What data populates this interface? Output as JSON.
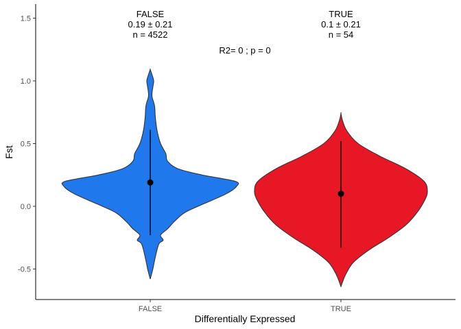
{
  "chart_data": {
    "type": "violin",
    "xlabel": "Differentially Expressed",
    "ylabel": "Fst",
    "categories": [
      "FALSE",
      "TRUE"
    ],
    "ylim": [
      -0.75,
      1.6
    ],
    "yticks": [
      -0.5,
      0.0,
      0.5,
      1.0,
      1.5
    ],
    "ytick_labels": [
      "-0.5",
      "0.0",
      "0.5",
      "1.0",
      "1.5"
    ],
    "grid": false,
    "legend": "none",
    "groups": [
      {
        "category": "FALSE",
        "color": "#1f78ec",
        "mean": 0.19,
        "whisker": [
          -0.23,
          0.61
        ],
        "range": [
          -0.58,
          1.09
        ],
        "density": [
          [
            -0.58,
            0.0
          ],
          [
            -0.5,
            0.03
          ],
          [
            -0.4,
            0.06
          ],
          [
            -0.3,
            0.1
          ],
          [
            -0.27,
            0.15
          ],
          [
            -0.23,
            0.12
          ],
          [
            -0.18,
            0.2
          ],
          [
            -0.12,
            0.28
          ],
          [
            -0.05,
            0.4
          ],
          [
            0.02,
            0.62
          ],
          [
            0.1,
            0.88
          ],
          [
            0.16,
            1.0
          ],
          [
            0.2,
            0.98
          ],
          [
            0.25,
            0.6
          ],
          [
            0.3,
            0.32
          ],
          [
            0.36,
            0.2
          ],
          [
            0.42,
            0.18
          ],
          [
            0.5,
            0.12
          ],
          [
            0.6,
            0.08
          ],
          [
            0.7,
            0.06
          ],
          [
            0.8,
            0.05
          ],
          [
            0.88,
            0.02
          ],
          [
            0.95,
            0.03
          ],
          [
            1.0,
            0.04
          ],
          [
            1.05,
            0.02
          ],
          [
            1.09,
            0.0
          ]
        ],
        "label_lines": [
          "FALSE",
          "0.19 ± 0.21",
          "n = 4522"
        ]
      },
      {
        "category": "TRUE",
        "color": "#e81726",
        "mean": 0.1,
        "whisker": [
          -0.33,
          0.52
        ],
        "range": [
          -0.64,
          0.74
        ],
        "density": [
          [
            -0.64,
            0.0
          ],
          [
            -0.55,
            0.05
          ],
          [
            -0.45,
            0.14
          ],
          [
            -0.35,
            0.32
          ],
          [
            -0.25,
            0.55
          ],
          [
            -0.15,
            0.75
          ],
          [
            -0.05,
            0.88
          ],
          [
            0.05,
            0.97
          ],
          [
            0.12,
            1.0
          ],
          [
            0.2,
            0.96
          ],
          [
            0.3,
            0.75
          ],
          [
            0.4,
            0.45
          ],
          [
            0.5,
            0.2
          ],
          [
            0.6,
            0.07
          ],
          [
            0.68,
            0.02
          ],
          [
            0.74,
            0.0
          ]
        ],
        "label_lines": [
          "TRUE",
          "0.1 ± 0.21",
          "n = 54"
        ]
      }
    ],
    "annotation": "R2= 0 ; p = 0"
  }
}
